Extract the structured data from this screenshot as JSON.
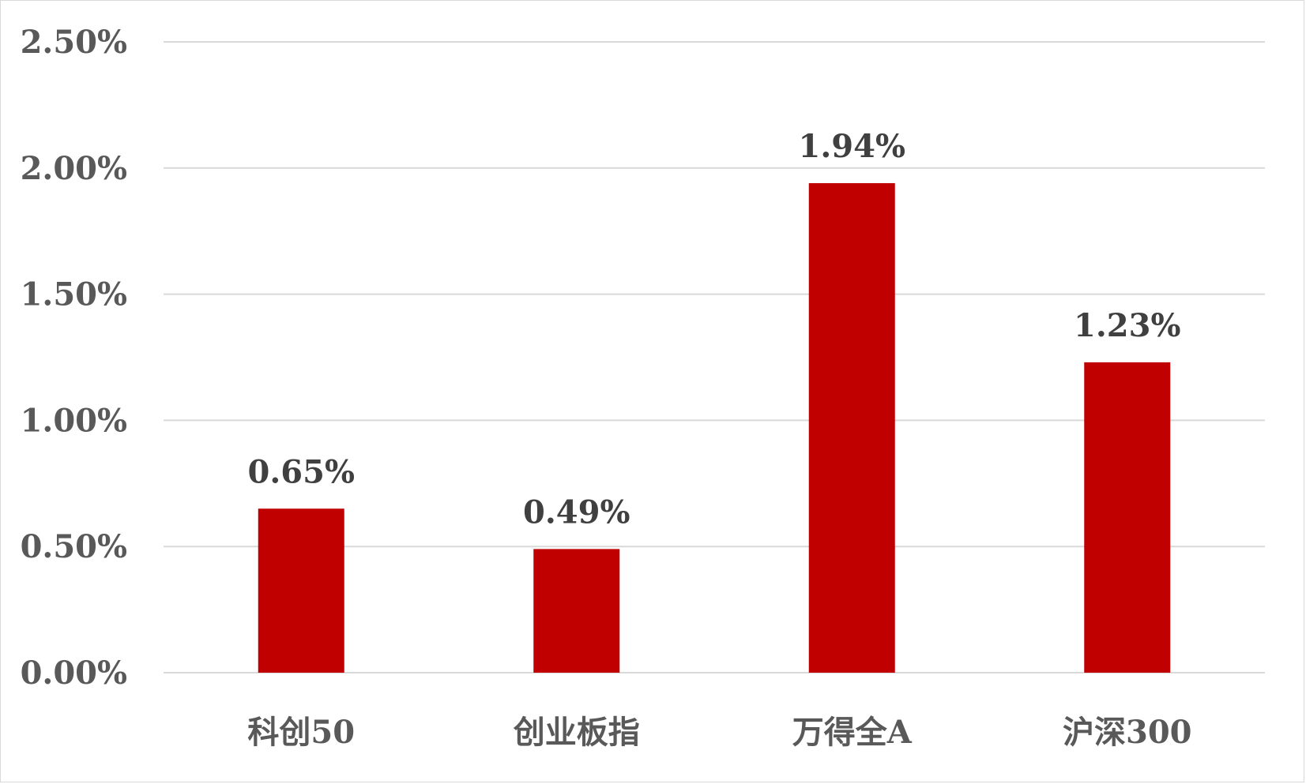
{
  "chart_data": {
    "type": "bar",
    "categories": [
      "科创50",
      "创业板指",
      "万得全A",
      "沪深300"
    ],
    "values": [
      0.65,
      0.49,
      1.94,
      1.23
    ],
    "data_labels": [
      "0.65%",
      "0.49%",
      "1.94%",
      "1.23%"
    ],
    "yticks": [
      0,
      0.5,
      1.0,
      1.5,
      2.0,
      2.5
    ],
    "ytick_labels": [
      "0.00%",
      "0.50%",
      "1.00%",
      "1.50%",
      "2.00%",
      "2.50%"
    ],
    "ylim": [
      0,
      2.5
    ],
    "grid": true,
    "legend": "none",
    "title": "",
    "xlabel": "",
    "ylabel": "",
    "colors": {
      "bar": "#c00000",
      "grid": "#d9d9d9",
      "text": "#595959",
      "label": "#404040"
    }
  }
}
